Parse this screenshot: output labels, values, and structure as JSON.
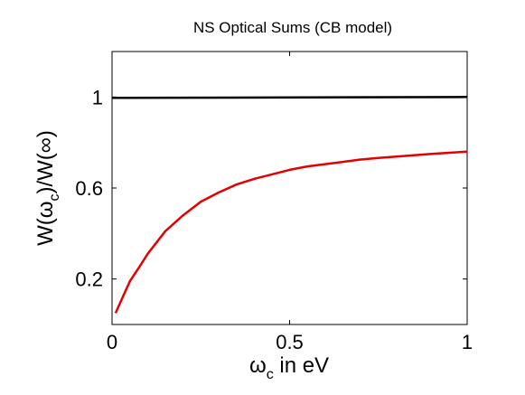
{
  "chart_data": {
    "type": "line",
    "title": "NS Optical Sums (CB model)",
    "xlabel": {
      "main": "ω",
      "sub": "c",
      "rest": " in eV"
    },
    "ylabel": {
      "part1": "W(ω",
      "sub1": "c",
      "part2": ")/W(",
      "part3": "∞",
      "part4": ")"
    },
    "xlim": [
      0,
      1
    ],
    "ylim": [
      0,
      1.2
    ],
    "xticks": [
      0,
      0.5,
      1
    ],
    "xtick_labels": [
      "0",
      "0.5",
      "1"
    ],
    "yticks": [
      0.2,
      0.6,
      1
    ],
    "ytick_labels": [
      "0.2",
      "0.6",
      "1"
    ],
    "grid": false,
    "series": [
      {
        "color": "#000000",
        "x": [
          0.0,
          1.0
        ],
        "y": [
          0.996,
          1.0
        ]
      },
      {
        "color": "#e50000",
        "x": [
          0.01,
          0.03,
          0.05,
          0.08,
          0.1,
          0.15,
          0.2,
          0.25,
          0.3,
          0.35,
          0.4,
          0.45,
          0.5,
          0.55,
          0.6,
          0.65,
          0.7,
          0.75,
          0.8,
          0.85,
          0.9,
          0.95,
          1.0
        ],
        "y": [
          0.05,
          0.12,
          0.19,
          0.26,
          0.31,
          0.41,
          0.48,
          0.54,
          0.58,
          0.615,
          0.64,
          0.66,
          0.68,
          0.695,
          0.705,
          0.715,
          0.725,
          0.732,
          0.738,
          0.744,
          0.75,
          0.755,
          0.76
        ]
      }
    ]
  }
}
